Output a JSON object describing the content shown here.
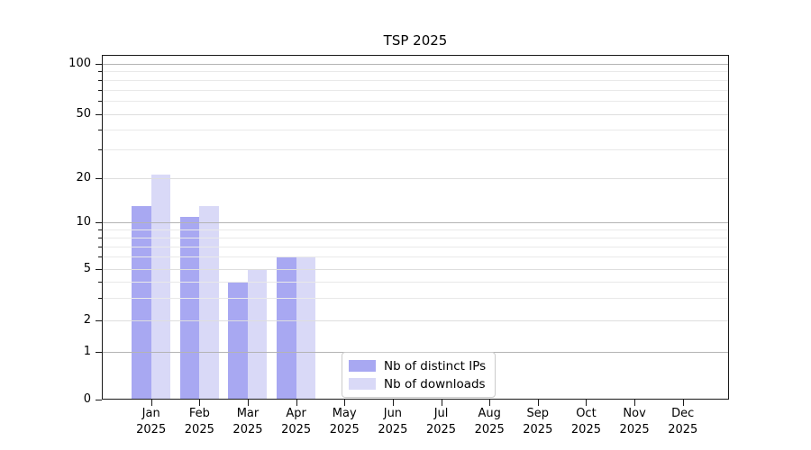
{
  "chart_data": {
    "type": "bar",
    "title": "TSP 2025",
    "categories": [
      "Jan 2025",
      "Feb 2025",
      "Mar 2025",
      "Apr 2025",
      "May 2025",
      "Jun 2025",
      "Jul 2025",
      "Aug 2025",
      "Sep 2025",
      "Oct 2025",
      "Nov 2025",
      "Dec 2025"
    ],
    "series": [
      {
        "name": "Nb of distinct IPs",
        "color": "#a8a8f2",
        "values": [
          13,
          11,
          4,
          6,
          0,
          0,
          0,
          0,
          0,
          0,
          0,
          0
        ]
      },
      {
        "name": "Nb of downloads",
        "color": "#d9d9f7",
        "values": [
          21,
          13,
          5,
          6,
          0,
          0,
          0,
          0,
          0,
          0,
          0,
          0
        ]
      }
    ],
    "y_axis": {
      "scale": "log-like",
      "tick_labels": [
        100,
        50,
        20,
        10,
        5,
        2,
        1,
        0
      ],
      "range": [
        0,
        100
      ],
      "minor_ticks": [
        3,
        4,
        6,
        7,
        8,
        9,
        30,
        40,
        60,
        70,
        80,
        90
      ]
    },
    "x_axis": {
      "tick_labels_two_line": true
    },
    "grid": {
      "shown": true,
      "drawn_over_bars": true
    },
    "legend": {
      "position": "bottom-center",
      "entries": [
        "Nb of distinct IPs",
        "Nb of downloads"
      ]
    },
    "colors": {
      "major_grid": "#b4b4b4",
      "minor_grid": "#e9e9e9",
      "spine": "#1a1a1a",
      "background": "#ffffff"
    }
  }
}
